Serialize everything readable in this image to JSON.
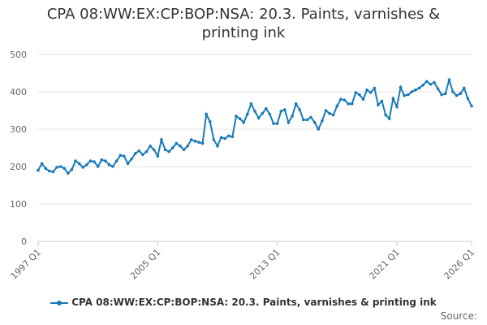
{
  "chart_data": {
    "type": "line",
    "title": "CPA 08:WW:EX:CP:BOP:NSA: 20.3. Paints, varnishes & printing ink",
    "source": "Source:",
    "categories": [
      "1997 Q1",
      null,
      null,
      null,
      null,
      null,
      null,
      null,
      null,
      null,
      null,
      null,
      null,
      null,
      null,
      null,
      null,
      null,
      null,
      null,
      null,
      null,
      null,
      null,
      null,
      null,
      null,
      null,
      null,
      null,
      null,
      null,
      "2005 Q1",
      null,
      null,
      null,
      null,
      null,
      null,
      null,
      null,
      null,
      null,
      null,
      null,
      null,
      null,
      null,
      null,
      null,
      null,
      null,
      null,
      null,
      null,
      null,
      null,
      null,
      null,
      null,
      null,
      null,
      null,
      null,
      "2013 Q1",
      null,
      null,
      null,
      null,
      null,
      null,
      null,
      null,
      null,
      null,
      null,
      null,
      null,
      null,
      null,
      null,
      null,
      null,
      null,
      null,
      null,
      null,
      null,
      null,
      null,
      null,
      null,
      null,
      null,
      null,
      null,
      "2021 Q1",
      null,
      null,
      null,
      null,
      null,
      null,
      null,
      null,
      null,
      null,
      null,
      null,
      null,
      null,
      null,
      null,
      null,
      null,
      null,
      "2026 Q1"
    ],
    "series": [
      {
        "name": "CPA 08:WW:EX:CP:BOP:NSA: 20.3. Paints, varnishes & printing ink",
        "color": "#1a7ab8",
        "values": [
          190,
          208,
          195,
          188,
          186,
          198,
          200,
          195,
          182,
          192,
          215,
          208,
          198,
          205,
          215,
          213,
          200,
          218,
          215,
          205,
          200,
          215,
          230,
          228,
          208,
          220,
          235,
          242,
          232,
          240,
          255,
          245,
          228,
          272,
          245,
          240,
          250,
          262,
          255,
          245,
          255,
          272,
          268,
          265,
          262,
          340,
          320,
          272,
          255,
          278,
          275,
          282,
          280,
          335,
          328,
          318,
          340,
          368,
          348,
          330,
          342,
          355,
          340,
          315,
          315,
          348,
          352,
          318,
          335,
          368,
          352,
          325,
          325,
          332,
          318,
          300,
          322,
          350,
          342,
          338,
          362,
          380,
          378,
          368,
          368,
          398,
          392,
          380,
          405,
          398,
          410,
          365,
          375,
          338,
          328,
          382,
          360,
          412,
          390,
          392,
          400,
          405,
          410,
          418,
          428,
          420,
          425,
          408,
          392,
          395,
          432,
          400,
          390,
          395,
          410,
          382,
          362
        ]
      }
    ],
    "ylim": [
      0,
      500
    ],
    "yticks": [
      0,
      100,
      200,
      300,
      400,
      500
    ],
    "grid": true
  }
}
